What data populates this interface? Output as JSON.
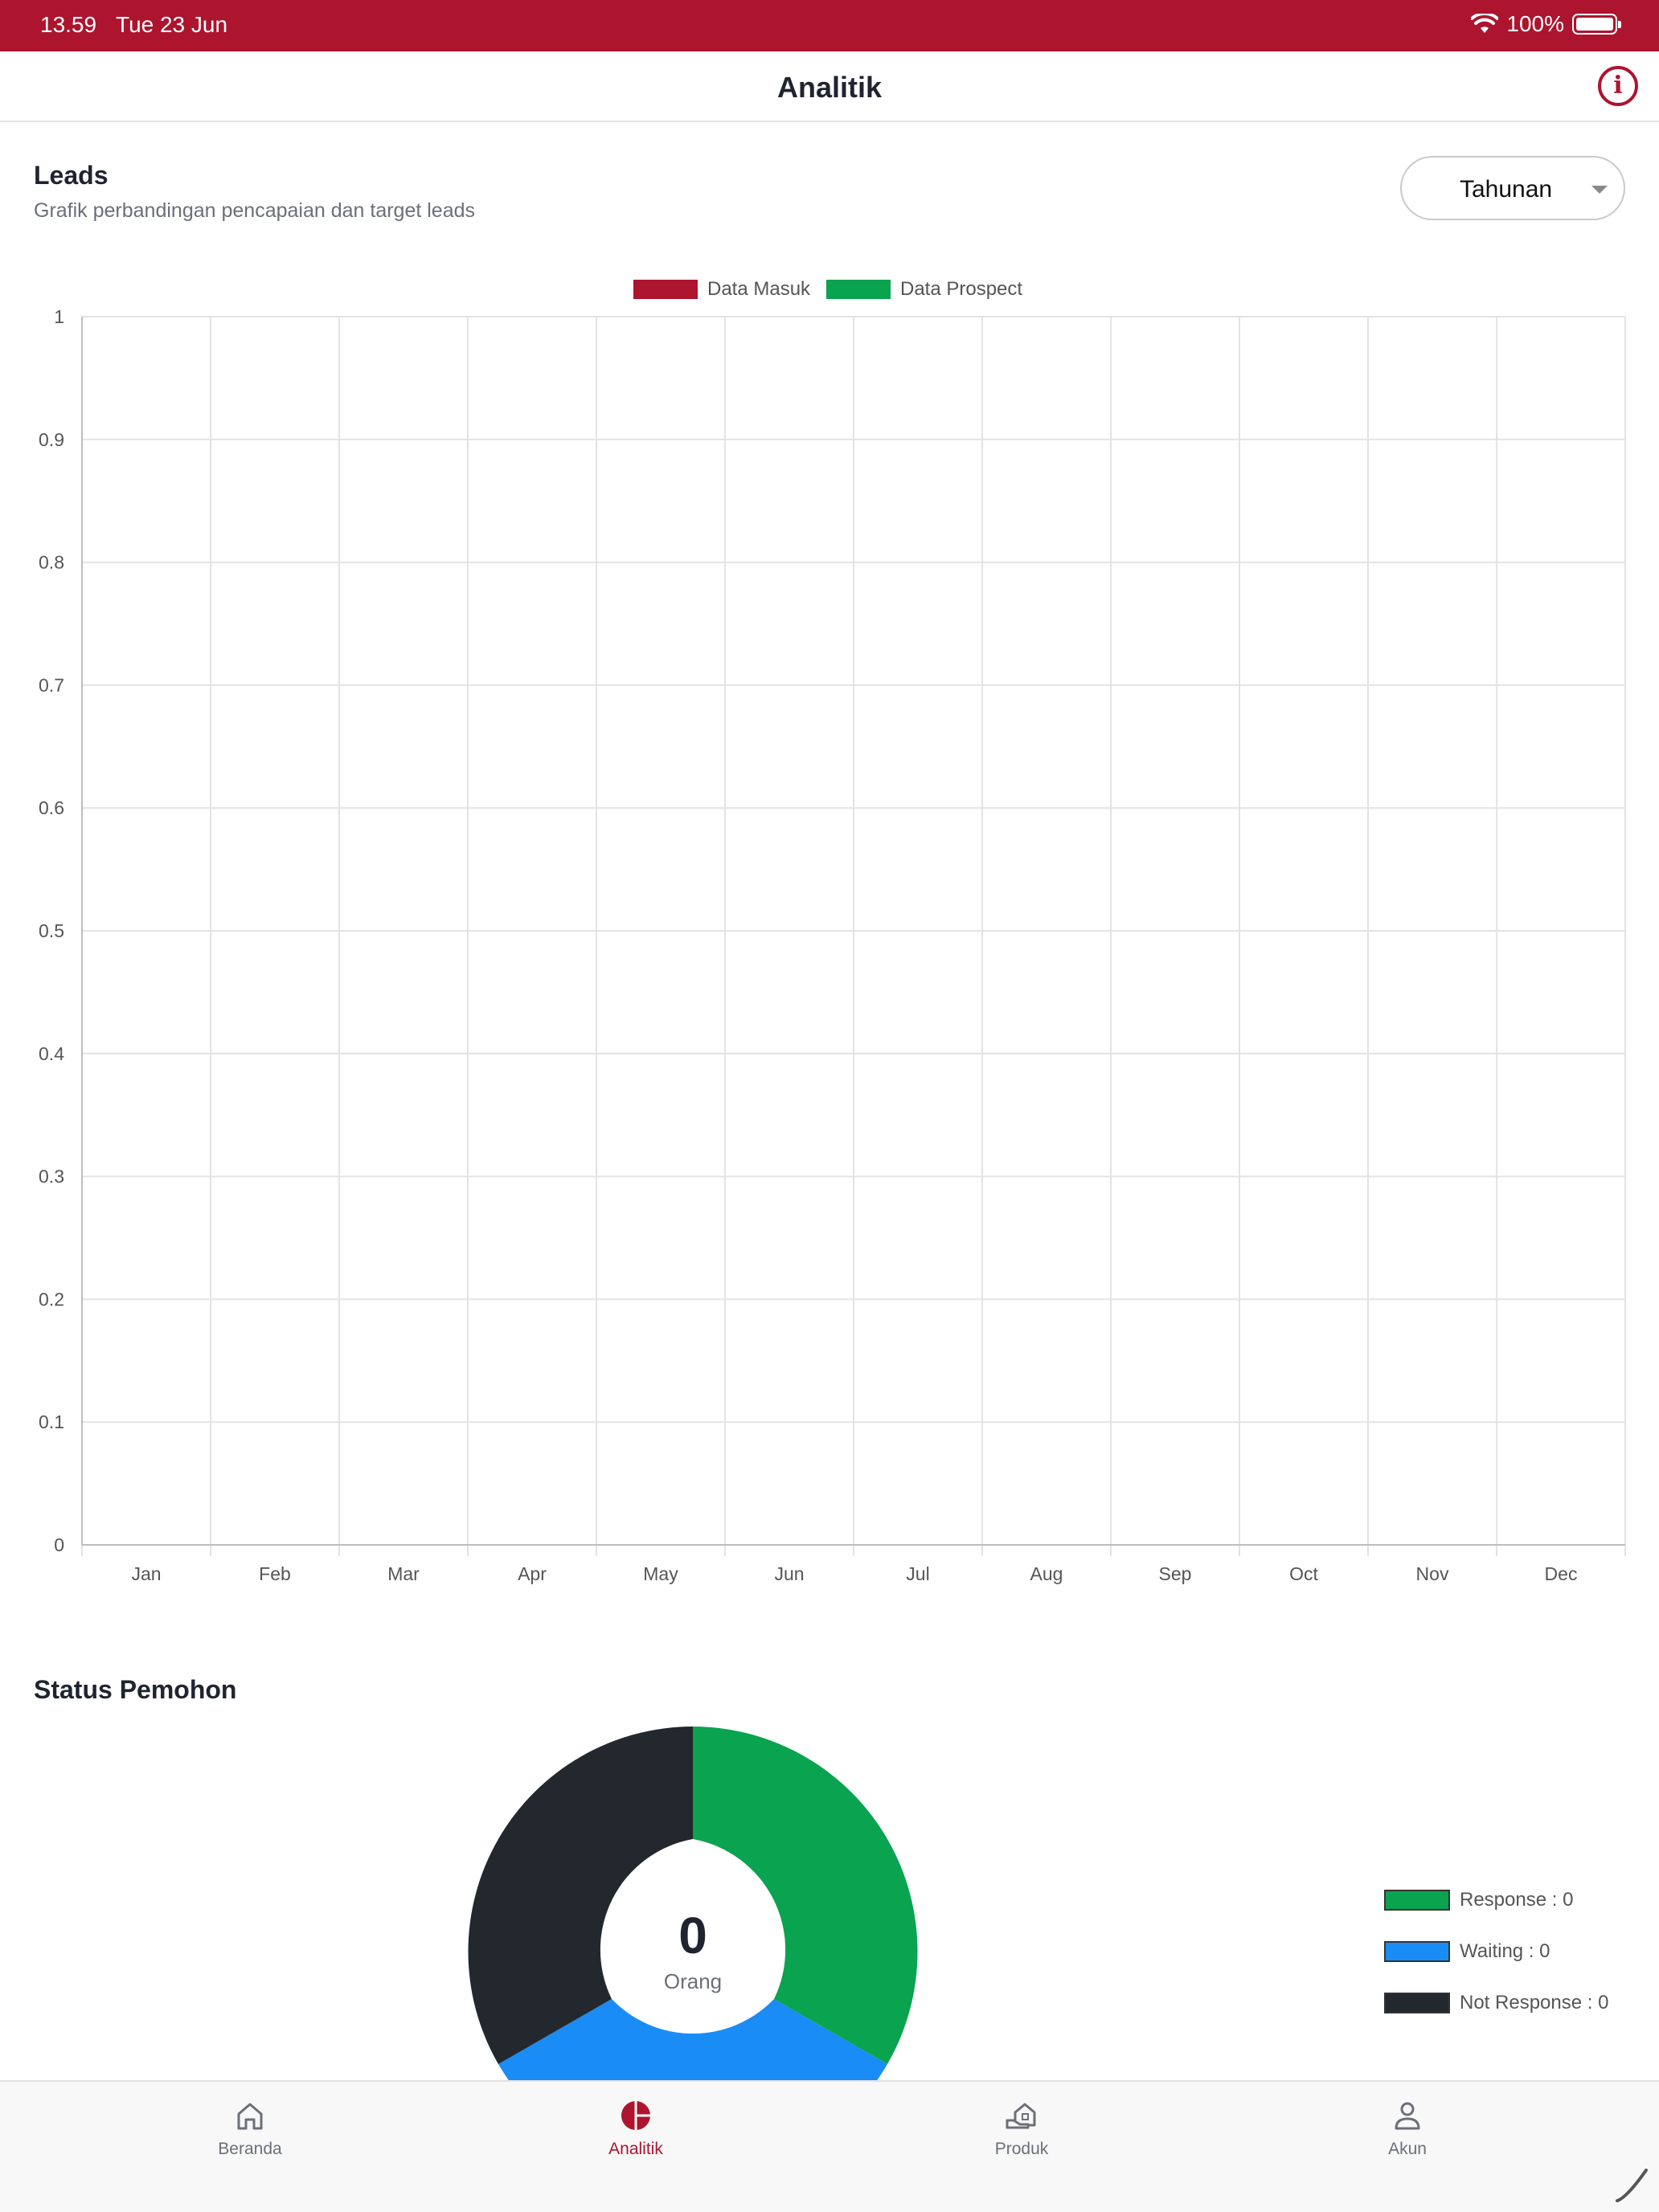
{
  "status_bar": {
    "time": "13.59",
    "date": "Tue 23 Jun",
    "battery": "100%"
  },
  "header": {
    "title": "Analitik"
  },
  "leads": {
    "title": "Leads",
    "subtitle": "Grafik perbandingan pencapaian dan target leads",
    "period_selected": "Tahunan"
  },
  "chart_data": {
    "type": "bar",
    "categories": [
      "Jan",
      "Feb",
      "Mar",
      "Apr",
      "May",
      "Jun",
      "Jul",
      "Aug",
      "Sep",
      "Oct",
      "Nov",
      "Dec"
    ],
    "series": [
      {
        "name": "Data Masuk",
        "color": "#ad142e",
        "values": [
          0,
          0,
          0,
          0,
          0,
          0,
          0,
          0,
          0,
          0,
          0,
          0
        ]
      },
      {
        "name": "Data Prospect",
        "color": "#0aa34f",
        "values": [
          0,
          0,
          0,
          0,
          0,
          0,
          0,
          0,
          0,
          0,
          0,
          0
        ]
      }
    ],
    "yticks": [
      "0",
      "0.1",
      "0.2",
      "0.3",
      "0.4",
      "0.5",
      "0.6",
      "0.7",
      "0.8",
      "0.9",
      "1"
    ],
    "ylim": [
      0,
      1
    ],
    "grid": true,
    "legend": "top-center"
  },
  "status_pemohon": {
    "title": "Status Pemohon",
    "total": "0",
    "unit": "Orang",
    "items": [
      {
        "label": "Response : 0",
        "color": "#0aa34f"
      },
      {
        "label": "Waiting : 0",
        "color": "#1a8cf5"
      },
      {
        "label": "Not Response : 0",
        "color": "#23272e"
      }
    ]
  },
  "tabs": [
    {
      "label": "Beranda",
      "icon": "home-icon",
      "active": false
    },
    {
      "label": "Analitik",
      "icon": "pie-chart-icon",
      "active": true
    },
    {
      "label": "Produk",
      "icon": "product-house-icon",
      "active": false
    },
    {
      "label": "Akun",
      "icon": "user-icon",
      "active": false
    }
  ]
}
